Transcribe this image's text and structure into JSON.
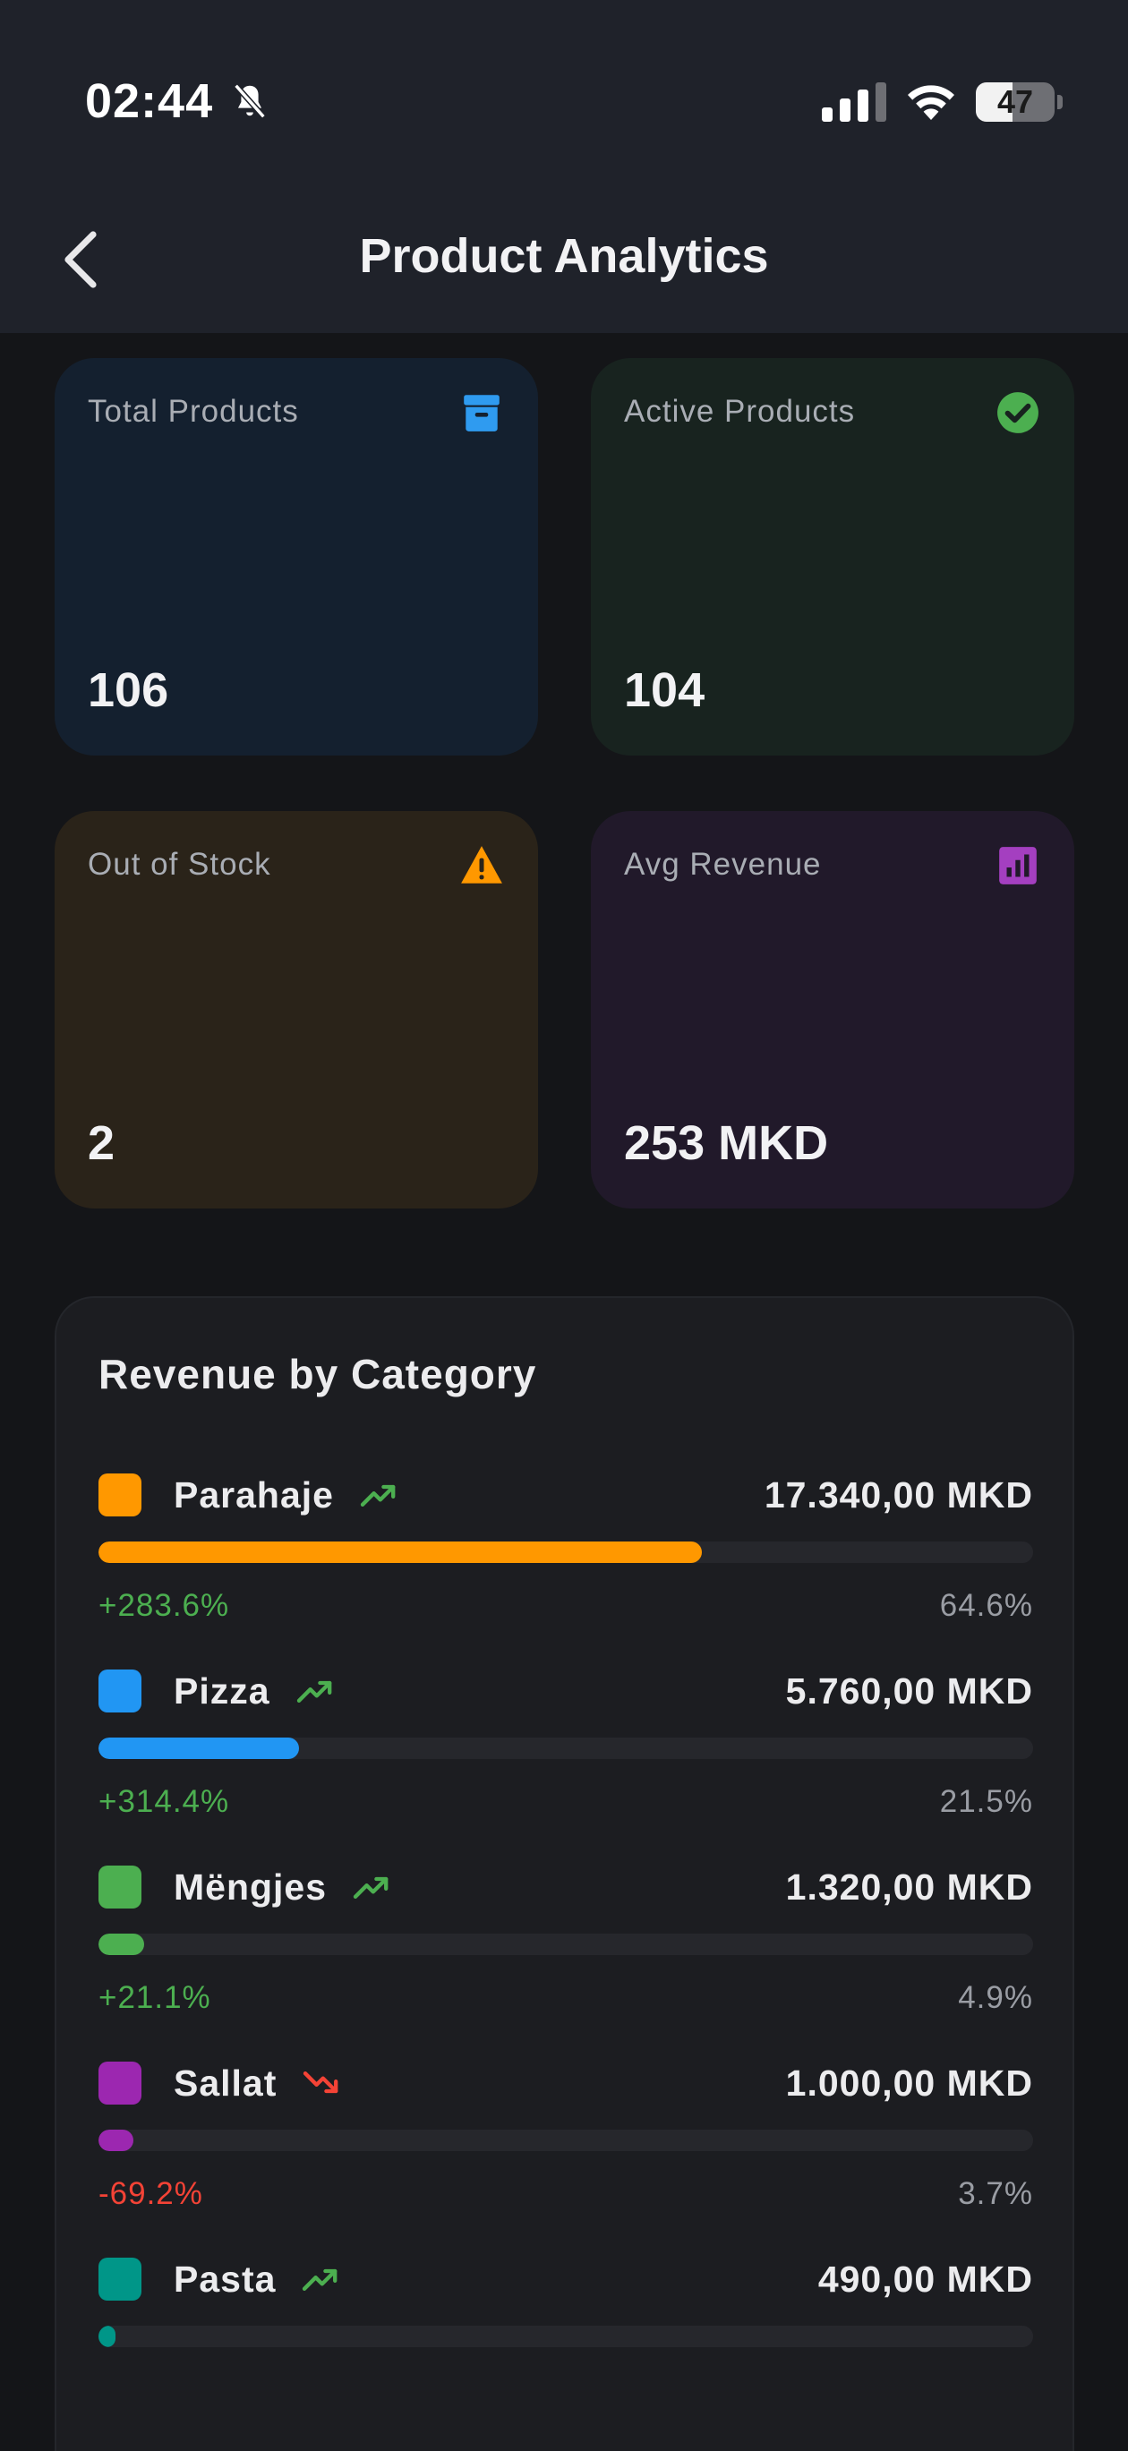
{
  "status_bar": {
    "time": "02:44",
    "battery": "47",
    "battery_level": 0.47
  },
  "header": {
    "title": "Product Analytics"
  },
  "cards": {
    "total": {
      "label": "Total Products",
      "value": "106",
      "color": "#2f9bf0"
    },
    "active": {
      "label": "Active Products",
      "value": "104",
      "color": "#4caf50"
    },
    "stock": {
      "label": "Out of Stock",
      "value": "2",
      "color": "#ff9800"
    },
    "revenue": {
      "label": "Avg Revenue",
      "value": "253 MKD",
      "color": "#a43fc0"
    }
  },
  "revenue_by_category": {
    "title": "Revenue by Category",
    "items": [
      {
        "name": "Parahaje",
        "amount": "17.340,00 MKD",
        "change": "+283.6%",
        "share": "64.6%",
        "share_value": 0.646,
        "trend": "up",
        "color": "#ff9800"
      },
      {
        "name": "Pizza",
        "amount": "5.760,00 MKD",
        "change": "+314.4%",
        "share": "21.5%",
        "share_value": 0.215,
        "trend": "up",
        "color": "#2196f3"
      },
      {
        "name": "Mëngjes",
        "amount": "1.320,00 MKD",
        "change": "+21.1%",
        "share": "4.9%",
        "share_value": 0.049,
        "trend": "up",
        "color": "#4caf50"
      },
      {
        "name": "Sallat",
        "amount": "1.000,00 MKD",
        "change": "-69.2%",
        "share": "3.7%",
        "share_value": 0.037,
        "trend": "down",
        "color": "#9c27b0"
      },
      {
        "name": "Pasta",
        "amount": "490,00 MKD",
        "change": "",
        "share": "",
        "share_value": 0.018,
        "trend": "up",
        "color": "#009688"
      }
    ]
  },
  "colors": {
    "positive": "#4caf50",
    "negative": "#f44336"
  }
}
